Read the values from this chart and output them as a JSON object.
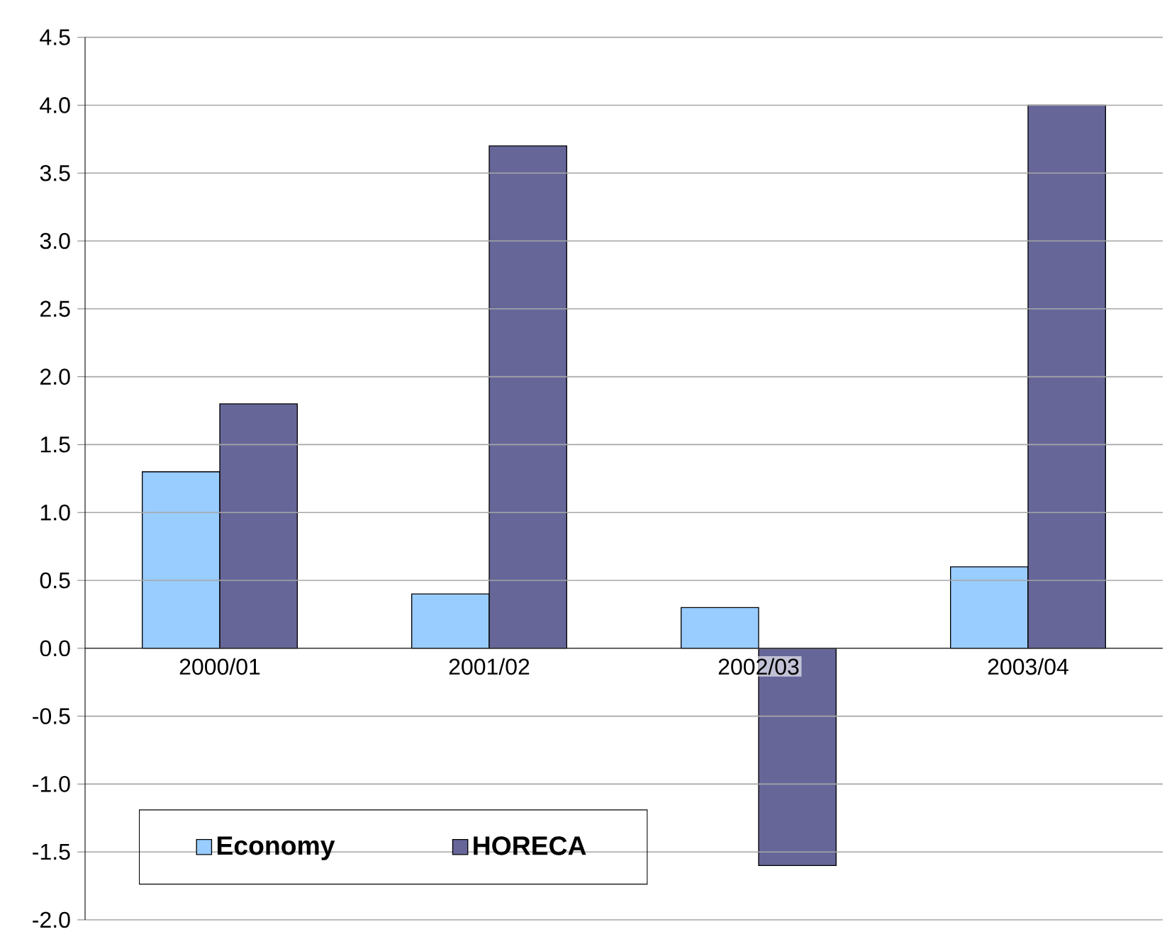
{
  "chart_data": {
    "type": "bar",
    "categories": [
      "2000/01",
      "2001/02",
      "2002/03",
      "2003/04"
    ],
    "series": [
      {
        "name": "Economy",
        "color": "#99ccff",
        "values": [
          1.3,
          0.4,
          0.3,
          0.6
        ]
      },
      {
        "name": "HORECA",
        "color": "#666699",
        "values": [
          1.8,
          3.7,
          -1.6,
          4.0
        ]
      }
    ],
    "ylim": [
      -2.0,
      4.5
    ],
    "yticks": [
      {
        "value": -2.0,
        "label": "-2.0"
      },
      {
        "value": -1.5,
        "label": "-1.5"
      },
      {
        "value": -1.0,
        "label": "-1.0"
      },
      {
        "value": -0.5,
        "label": "-0.5"
      },
      {
        "value": 0,
        "label": "0.0"
      },
      {
        "value": 0.5,
        "label": "0.5"
      },
      {
        "value": 1.0,
        "label": "1.0"
      },
      {
        "value": 1.5,
        "label": "1.5"
      },
      {
        "value": 2.0,
        "label": "2.0"
      },
      {
        "value": 2.5,
        "label": "2.5"
      },
      {
        "value": 3.0,
        "label": "3.0"
      },
      {
        "value": 3.5,
        "label": "3.5"
      },
      {
        "value": 4.0,
        "label": "4.0"
      },
      {
        "value": 4.5,
        "label": "4.5"
      }
    ],
    "grid": "y",
    "legend": "bottom left"
  }
}
